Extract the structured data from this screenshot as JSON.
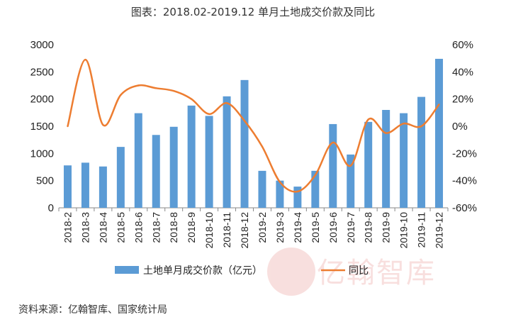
{
  "title": "图表：2018.02-2019.12 单月土地成交价款及同比",
  "source": "资料来源：亿翰智库、国家统计局",
  "watermark": "亿翰智库",
  "chart_data": {
    "type": "bar",
    "categories": [
      "2018-2",
      "2018-3",
      "2018-4",
      "2018-5",
      "2018-6",
      "2018-7",
      "2018-8",
      "2018-9",
      "2018-10",
      "2018-11",
      "2018-12",
      "2019-2",
      "2019-3",
      "2019-4",
      "2019-5",
      "2019-6",
      "2019-7",
      "2019-8",
      "2019-9",
      "2019-10",
      "2019-11",
      "2019-12"
    ],
    "series": [
      {
        "name": "土地单月成交价款（亿元）",
        "type": "bar",
        "axis": "left",
        "color": "#5b9bd5",
        "values": [
          780,
          830,
          760,
          1120,
          1740,
          1340,
          1490,
          1880,
          1690,
          2050,
          2350,
          680,
          500,
          390,
          680,
          1540,
          980,
          1580,
          1800,
          1740,
          2040,
          2740
        ]
      },
      {
        "name": "同比",
        "type": "line",
        "axis": "right",
        "color": "#ed7d31",
        "values": [
          0,
          49,
          1,
          23,
          30,
          28,
          26,
          20,
          9,
          17,
          4,
          -15,
          -41,
          -48,
          -36,
          -12,
          -29,
          5,
          -5,
          2,
          0,
          16
        ]
      }
    ],
    "y_left": {
      "min": 0,
      "max": 3000,
      "ticks": [
        0,
        500,
        1000,
        1500,
        2000,
        2500,
        3000
      ],
      "labels": [
        "0",
        "500",
        "1000",
        "1500",
        "2000",
        "2500",
        "3000"
      ]
    },
    "y_right": {
      "min": -60,
      "max": 60,
      "ticks": [
        -60,
        -40,
        -20,
        0,
        20,
        40,
        60
      ],
      "labels": [
        "-60%",
        "-40%",
        "-20%",
        "0%",
        "20%",
        "40%",
        "60%"
      ]
    },
    "legend": {
      "position": "bottom",
      "items": [
        "土地单月成交价款（亿元）",
        "同比"
      ]
    },
    "grid": false
  }
}
